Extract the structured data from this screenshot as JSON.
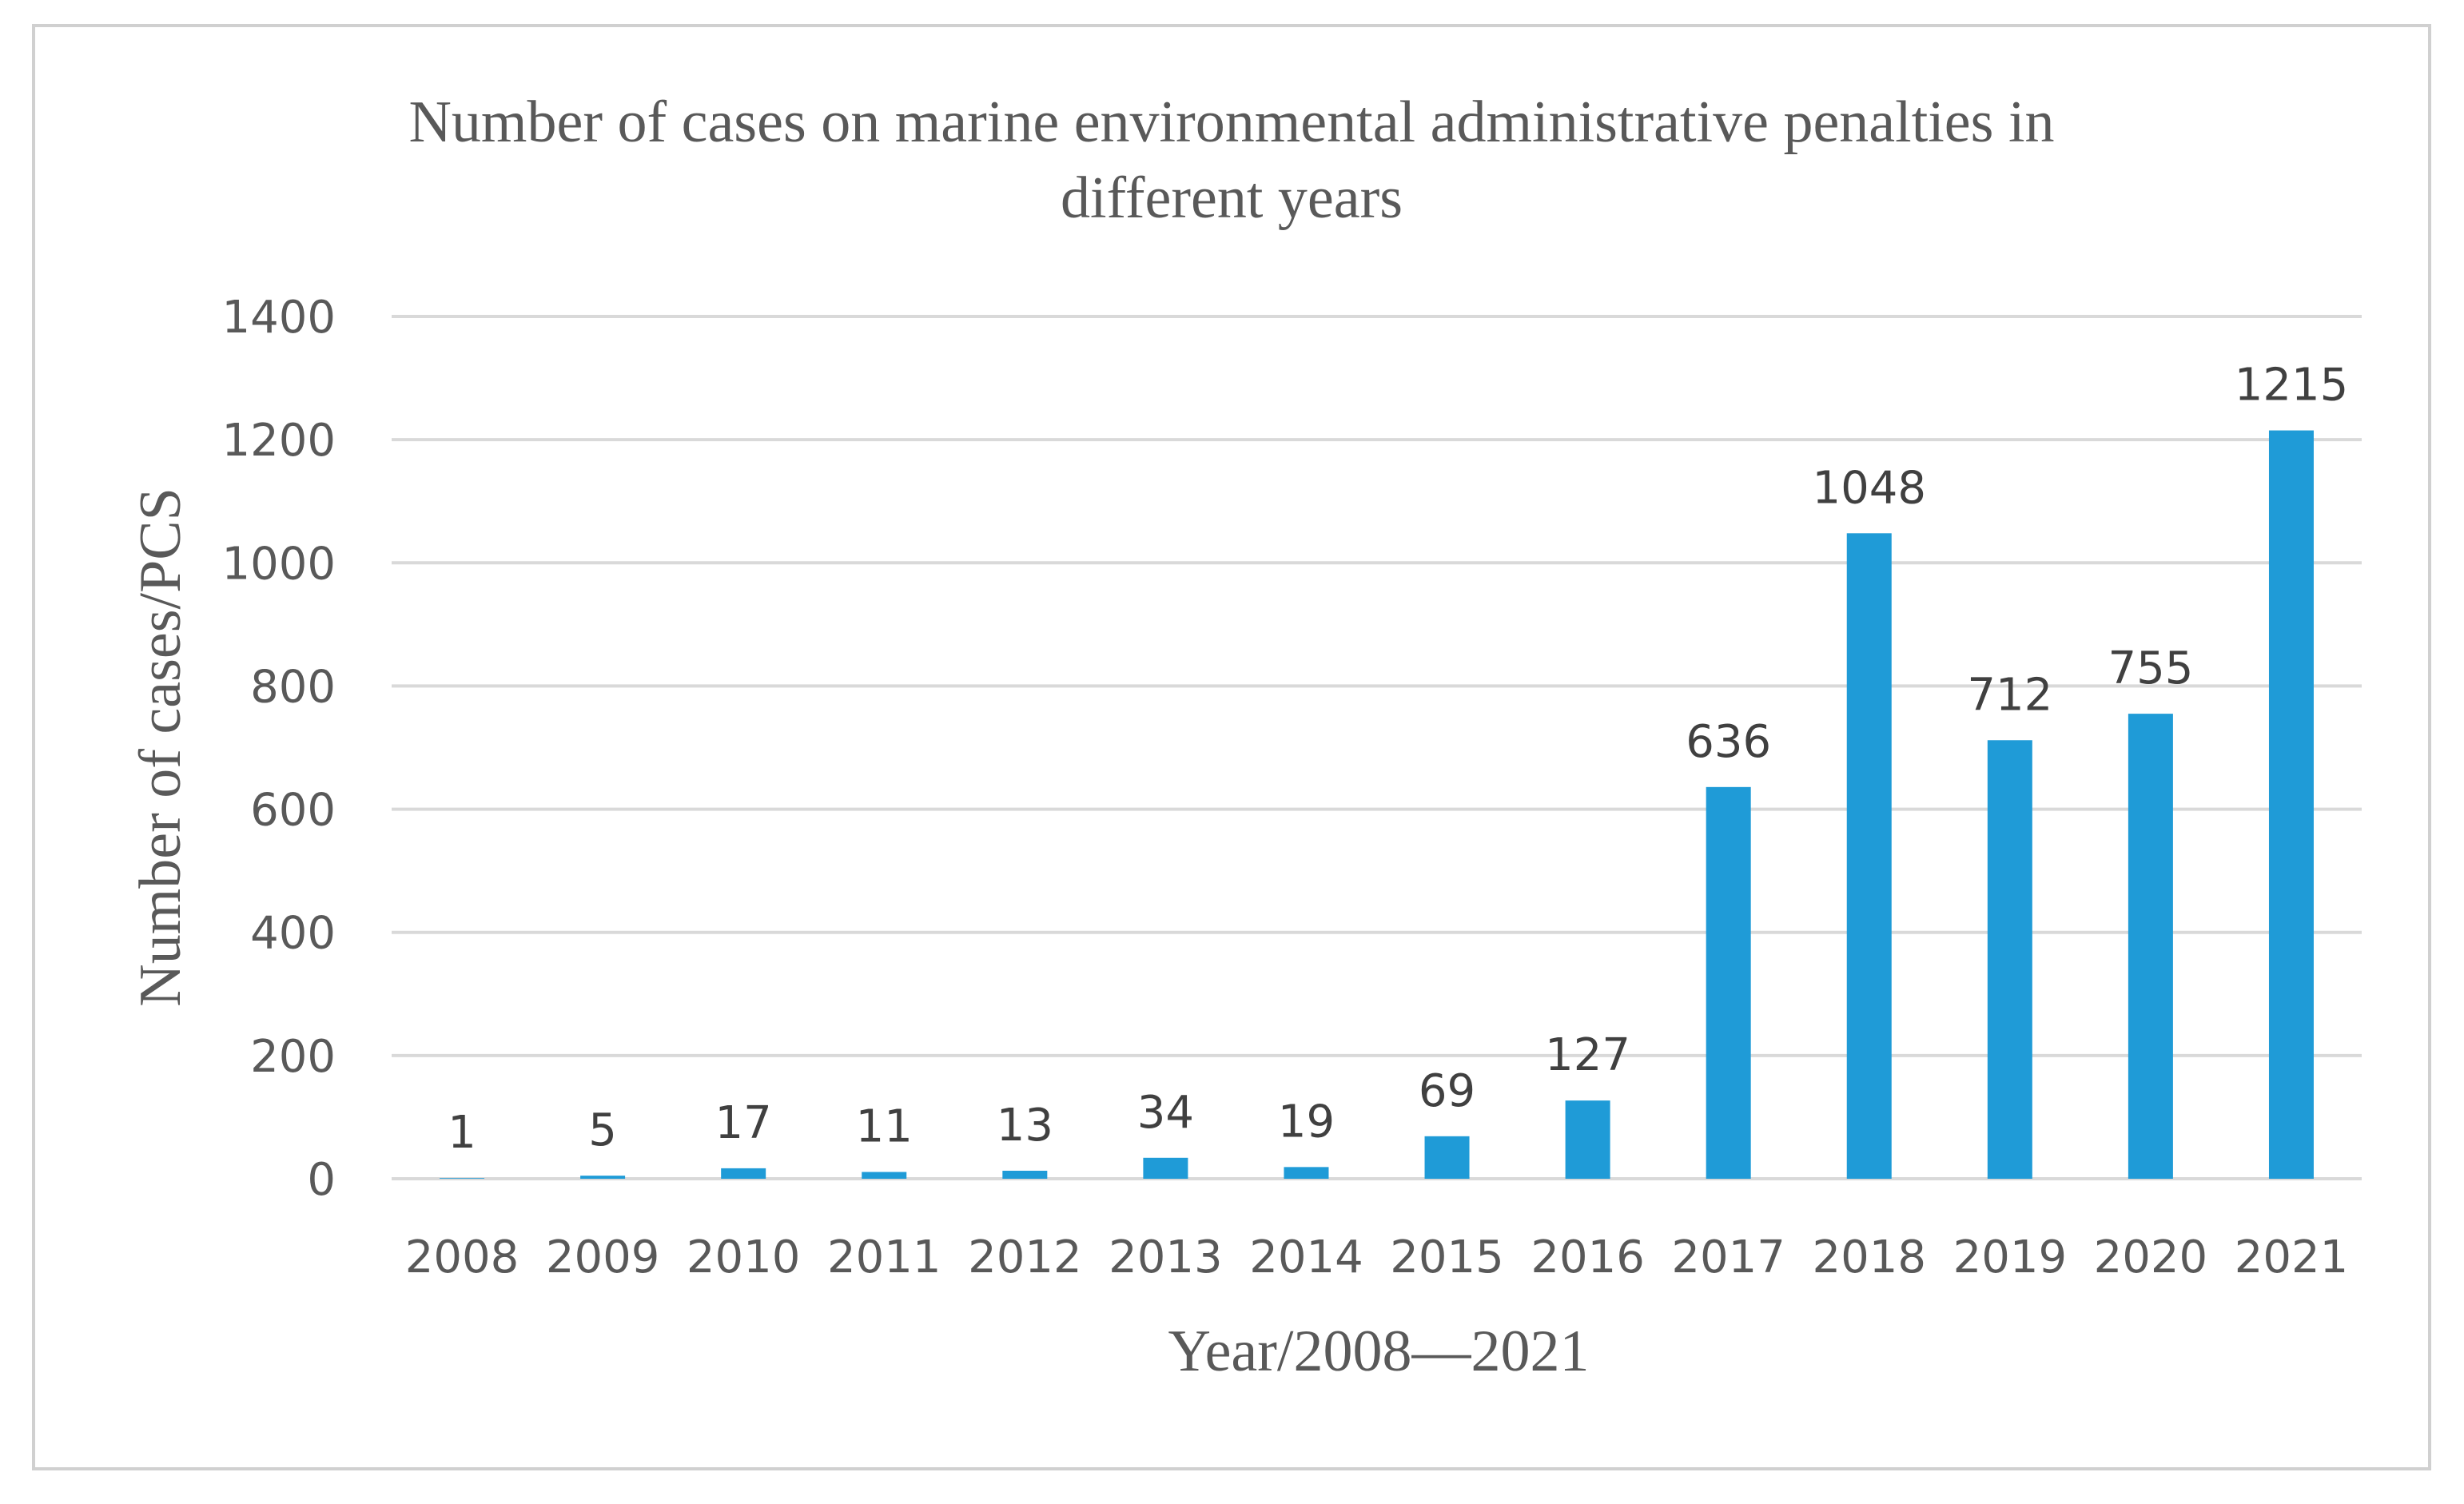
{
  "chart_data": {
    "type": "bar",
    "title": [
      "Number of cases on marine environmental administrative penalties in",
      "different years"
    ],
    "xlabel": "Year/2008—2021",
    "ylabel": "Number of cases/PCS",
    "categories": [
      "2008",
      "2009",
      "2010",
      "2011",
      "2012",
      "2013",
      "2014",
      "2015",
      "2016",
      "2017",
      "2018",
      "2019",
      "2020",
      "2021"
    ],
    "values": [
      1,
      5,
      17,
      11,
      13,
      34,
      19,
      69,
      127,
      636,
      1048,
      712,
      755,
      1215
    ],
    "data_labels": [
      "1",
      "5",
      "17",
      "11",
      "13",
      "34",
      "19",
      "69",
      "127",
      "636",
      "1048",
      "712",
      "755",
      "1215"
    ],
    "ylim": [
      0,
      1400
    ],
    "yticks": [
      "0",
      "200",
      "400",
      "600",
      "800",
      "1000",
      "1200",
      "1400"
    ],
    "ytick_values": [
      0,
      200,
      400,
      600,
      800,
      1000,
      1200,
      1400
    ],
    "grid": true,
    "legend": "none",
    "bar_color": "#1f9bd7",
    "grid_color": "#d9d9d9",
    "border_color": "#d0d0d0"
  }
}
